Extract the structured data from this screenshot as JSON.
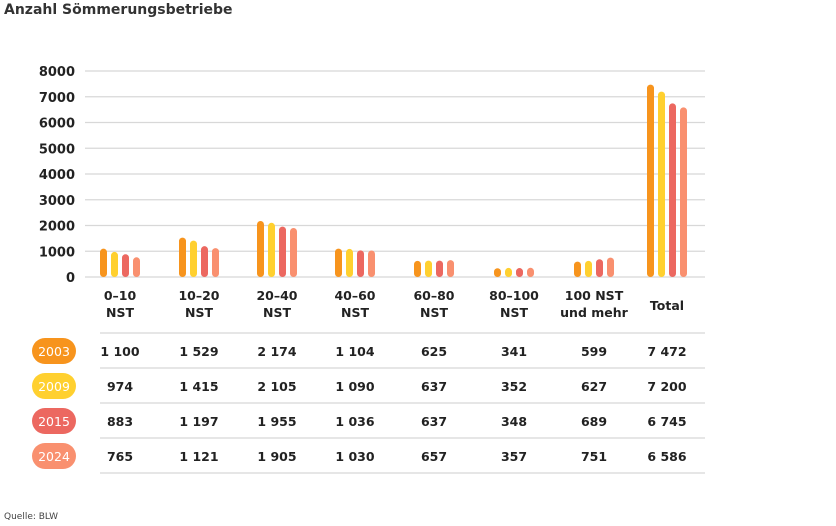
{
  "chart_data": {
    "type": "bar",
    "title": "Anzahl Sömmerungsbetriebe",
    "source": "Quelle: BLW",
    "categories": [
      [
        "0–10",
        "NST"
      ],
      [
        "10–20",
        "NST"
      ],
      [
        "20–40",
        "NST"
      ],
      [
        "40–60",
        "NST"
      ],
      [
        "60–80",
        "NST"
      ],
      [
        "80–100",
        "NST"
      ],
      [
        "100 NST",
        "und mehr"
      ],
      [
        "Total"
      ]
    ],
    "ylim": [
      0,
      8000
    ],
    "yticks": [
      0,
      1000,
      2000,
      3000,
      4000,
      5000,
      6000,
      7000,
      8000
    ],
    "grid": true,
    "series": [
      {
        "name": "2003",
        "color": "#F7941D",
        "values": [
          1100,
          1529,
          2174,
          1104,
          625,
          341,
          599,
          7472
        ],
        "labels": [
          "1 100",
          "1 529",
          "2 174",
          "1 104",
          "625",
          "341",
          "599",
          "7 472"
        ]
      },
      {
        "name": "2009",
        "color": "#FFD02F",
        "values": [
          974,
          1415,
          2105,
          1090,
          637,
          352,
          627,
          7200
        ],
        "labels": [
          "974",
          "1 415",
          "2 105",
          "1 090",
          "637",
          "352",
          "627",
          "7 200"
        ]
      },
      {
        "name": "2015",
        "color": "#EC6860",
        "values": [
          883,
          1197,
          1955,
          1036,
          637,
          348,
          689,
          6745
        ],
        "labels": [
          "883",
          "1 197",
          "1 955",
          "1 036",
          "637",
          "348",
          "689",
          "6 745"
        ]
      },
      {
        "name": "2024",
        "color": "#F9906F",
        "values": [
          765,
          1121,
          1905,
          1030,
          657,
          357,
          751,
          6586
        ],
        "labels": [
          "765",
          "1 121",
          "1 905",
          "1 030",
          "657",
          "357",
          "751",
          "6 586"
        ]
      }
    ]
  }
}
